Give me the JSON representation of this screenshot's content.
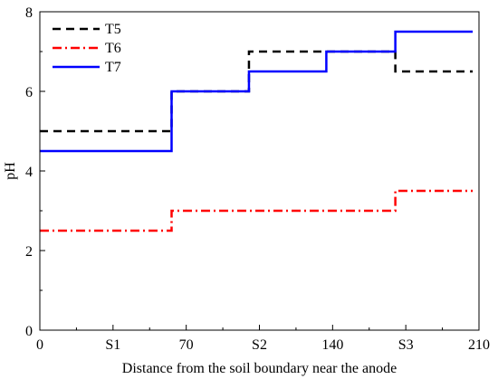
{
  "chart_data": {
    "type": "line",
    "step": true,
    "xlabel": "Distance from the soil boundary near the anode",
    "ylabel": "pH",
    "xlim": [
      0,
      210
    ],
    "ylim": [
      0,
      8
    ],
    "x_ticks": [
      {
        "value": 0,
        "label": "0"
      },
      {
        "value": 35,
        "label": "S1"
      },
      {
        "value": 70,
        "label": "70"
      },
      {
        "value": 105,
        "label": "S2"
      },
      {
        "value": 140,
        "label": "140"
      },
      {
        "value": 175,
        "label": "S3"
      },
      {
        "value": 210,
        "label": "210"
      }
    ],
    "y_ticks": [
      {
        "value": 0,
        "label": "0"
      },
      {
        "value": 2,
        "label": "2"
      },
      {
        "value": 4,
        "label": "4"
      },
      {
        "value": 6,
        "label": "6"
      },
      {
        "value": 8,
        "label": "8"
      }
    ],
    "legend_position": "top-left",
    "grid": false,
    "series": [
      {
        "name": "T5",
        "color": "#000000",
        "dash": "dashed",
        "steps": [
          {
            "x0": 0,
            "x1": 63,
            "y": 5.0
          },
          {
            "x0": 63,
            "x1": 100,
            "y": 6.0
          },
          {
            "x0": 100,
            "x1": 170,
            "y": 7.0
          },
          {
            "x0": 170,
            "x1": 207,
            "y": 6.5
          }
        ]
      },
      {
        "name": "T6",
        "color": "#ff0000",
        "dash": "dashdot",
        "steps": [
          {
            "x0": 0,
            "x1": 63,
            "y": 2.5
          },
          {
            "x0": 63,
            "x1": 170,
            "y": 3.0
          },
          {
            "x0": 170,
            "x1": 207,
            "y": 3.5
          }
        ]
      },
      {
        "name": "T7",
        "color": "#0000ff",
        "dash": "solid",
        "steps": [
          {
            "x0": 0,
            "x1": 63,
            "y": 4.5
          },
          {
            "x0": 63,
            "x1": 100,
            "y": 6.0
          },
          {
            "x0": 100,
            "x1": 137,
            "y": 6.5
          },
          {
            "x0": 137,
            "x1": 170,
            "y": 7.0
          },
          {
            "x0": 170,
            "x1": 207,
            "y": 7.5
          }
        ]
      }
    ]
  }
}
